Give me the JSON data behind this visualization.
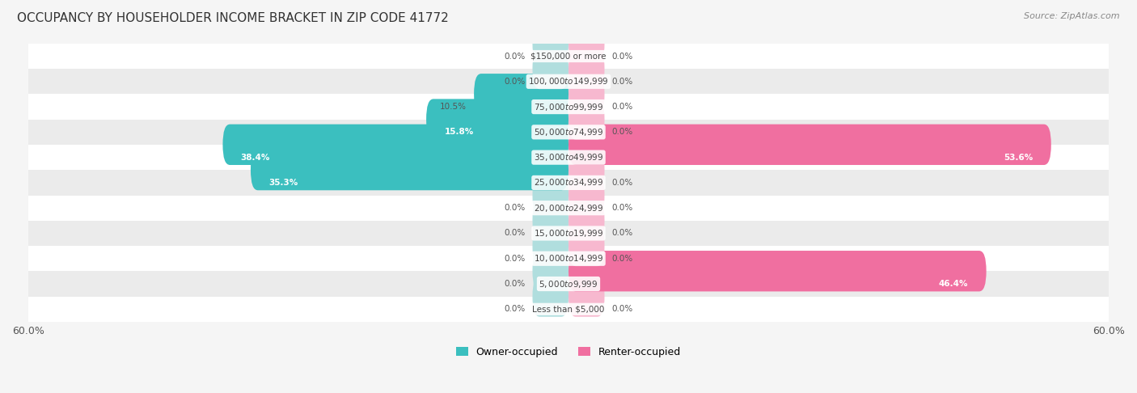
{
  "title": "OCCUPANCY BY HOUSEHOLDER INCOME BRACKET IN ZIP CODE 41772",
  "source": "Source: ZipAtlas.com",
  "categories": [
    "Less than $5,000",
    "$5,000 to $9,999",
    "$10,000 to $14,999",
    "$15,000 to $19,999",
    "$20,000 to $24,999",
    "$25,000 to $34,999",
    "$35,000 to $49,999",
    "$50,000 to $74,999",
    "$75,000 to $99,999",
    "$100,000 to $149,999",
    "$150,000 or more"
  ],
  "owner_values": [
    0.0,
    0.0,
    0.0,
    0.0,
    0.0,
    35.3,
    38.4,
    15.8,
    10.5,
    0.0,
    0.0
  ],
  "renter_values": [
    0.0,
    46.4,
    0.0,
    0.0,
    0.0,
    0.0,
    53.6,
    0.0,
    0.0,
    0.0,
    0.0
  ],
  "owner_color": "#3bbfbf",
  "owner_color_light": "#b0dede",
  "renter_color": "#f06fa0",
  "renter_color_light": "#f7b8cf",
  "axis_max": 60.0,
  "background_color": "#f5f5f5",
  "row_bg_even": "#ffffff",
  "row_bg_odd": "#ebebeb"
}
